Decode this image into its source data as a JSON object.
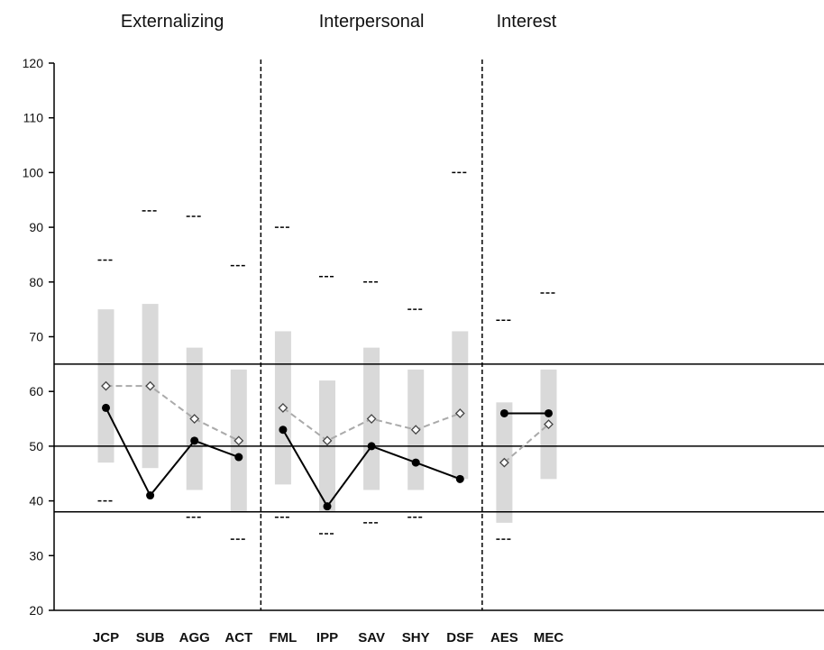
{
  "chart_data": {
    "type": "line",
    "groups": [
      {
        "label": "Externalizing",
        "categories": [
          "JCP",
          "SUB",
          "AGG",
          "ACT"
        ]
      },
      {
        "label": "Interpersonal",
        "categories": [
          "FML",
          "IPP",
          "SAV",
          "SHY",
          "DSF"
        ]
      },
      {
        "label": "Interest",
        "categories": [
          "AES",
          "MEC"
        ]
      }
    ],
    "categories": [
      "JCP",
      "SUB",
      "AGG",
      "ACT",
      "FML",
      "IPP",
      "SAV",
      "SHY",
      "DSF",
      "AES",
      "MEC"
    ],
    "ylim": [
      20,
      120
    ],
    "yticks": [
      20,
      30,
      40,
      50,
      60,
      70,
      80,
      90,
      100,
      110,
      120
    ],
    "reference_lines": [
      65,
      50,
      38
    ],
    "ranges": [
      [
        47,
        75
      ],
      [
        46,
        76
      ],
      [
        42,
        68
      ],
      [
        38,
        64
      ],
      [
        43,
        71
      ],
      [
        38,
        62
      ],
      [
        42,
        68
      ],
      [
        42,
        64
      ],
      [
        44,
        71
      ],
      [
        36,
        58
      ],
      [
        44,
        64
      ]
    ],
    "upper_marks": [
      84,
      93,
      92,
      83,
      90,
      81,
      80,
      75,
      100,
      73,
      78
    ],
    "lower_marks": [
      40,
      null,
      37,
      33,
      37,
      34,
      36,
      37,
      null,
      33,
      null
    ],
    "series": [
      {
        "style": "solid",
        "color": "#000000",
        "marker": "filled-circle",
        "segments": [
          [
            0,
            1,
            2,
            3
          ],
          [
            4,
            5,
            6,
            7,
            8
          ],
          [
            9,
            10
          ]
        ],
        "values": [
          57,
          41,
          51,
          48,
          53,
          39,
          50,
          47,
          44,
          56,
          56
        ]
      },
      {
        "style": "dashed",
        "color": "#aaaaaa",
        "marker": "open-diamond",
        "segments": [
          [
            0,
            1,
            2,
            3
          ],
          [
            4,
            5,
            6,
            7,
            8
          ],
          [
            9,
            10
          ]
        ],
        "values": [
          61,
          61,
          55,
          51,
          57,
          51,
          55,
          53,
          56,
          47,
          54
        ]
      }
    ],
    "colors": {
      "range_bar": "#d9d9d9",
      "axis": "#000000"
    },
    "grid": false,
    "legend": "none"
  }
}
